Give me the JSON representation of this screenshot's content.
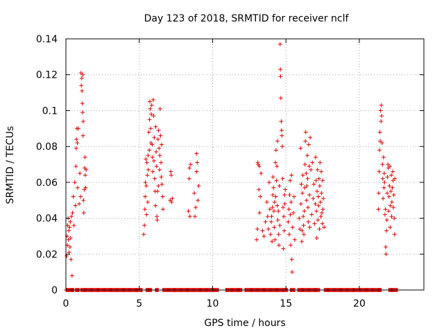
{
  "chart_data": {
    "type": "scatter",
    "title": "Day 123 of 2018, SRMTID for receiver nclf",
    "xlabel": "GPS time / hours",
    "ylabel": "SRMTID / TECUs",
    "xlim": [
      0,
      24.4
    ],
    "ylim": [
      0,
      0.14
    ],
    "grid": true,
    "x_ticks": [
      0,
      5,
      10,
      15,
      20
    ],
    "x_tick_labels": [
      "0",
      "5",
      "10",
      "15",
      "20"
    ],
    "y_ticks": [
      0,
      0.02,
      0.04,
      0.06,
      0.08,
      0.1,
      0.12,
      0.14
    ],
    "y_tick_labels": [
      "0",
      "0.02",
      "0.04",
      "0.06",
      "0.08",
      "0.1",
      "0.12",
      "0.14"
    ],
    "marker_color": "#e00000",
    "series": [
      {
        "name": "SRMTID",
        "points": [
          [
            0.05,
            0.019
          ],
          [
            0.08,
            0.03
          ],
          [
            0.1,
            0.025
          ],
          [
            0.12,
            0.036
          ],
          [
            0.15,
            0.04
          ],
          [
            0.18,
            0.028
          ],
          [
            0.2,
            0.033
          ],
          [
            0.22,
            0.021
          ],
          [
            0.25,
            0.035
          ],
          [
            0.28,
            0.024
          ],
          [
            0.3,
            0.038
          ],
          [
            0.32,
            0.029
          ],
          [
            0.35,
            0.017
          ],
          [
            0.38,
            0.041
          ],
          [
            0.42,
            0.008
          ],
          [
            0.45,
            0.043
          ],
          [
            0.5,
            0.052
          ],
          [
            0.55,
            0.036
          ],
          [
            0.6,
            0.06
          ],
          [
            0.65,
            0.047
          ],
          [
            0.68,
            0.069
          ],
          [
            0.7,
            0.079
          ],
          [
            0.72,
            0.084
          ],
          [
            0.75,
            0.09
          ],
          [
            0.78,
            0.082
          ],
          [
            0.8,
            0.057
          ],
          [
            0.85,
            0.09
          ],
          [
            0.9,
            0.048
          ],
          [
            0.95,
            0.065
          ],
          [
            1.0,
            0.052
          ],
          [
            1.03,
            0.121
          ],
          [
            1.05,
            0.114
          ],
          [
            1.08,
            0.118
          ],
          [
            1.1,
            0.111
          ],
          [
            1.12,
            0.104
          ],
          [
            1.14,
            0.099
          ],
          [
            1.15,
            0.12
          ],
          [
            1.17,
            0.086
          ],
          [
            1.18,
            0.094
          ],
          [
            1.2,
            0.05
          ],
          [
            1.22,
            0.043
          ],
          [
            1.25,
            0.056
          ],
          [
            1.28,
            0.068
          ],
          [
            1.3,
            0.074
          ],
          [
            1.32,
            0.064
          ],
          [
            1.35,
            0.057
          ],
          [
            1.38,
            0.067
          ],
          [
            5.3,
            0.031
          ],
          [
            5.35,
            0.036
          ],
          [
            5.38,
            0.045
          ],
          [
            5.4,
            0.052
          ],
          [
            5.42,
            0.06
          ],
          [
            5.45,
            0.073
          ],
          [
            5.48,
            0.058
          ],
          [
            5.5,
            0.042
          ],
          [
            5.52,
            0.071
          ],
          [
            5.55,
            0.064
          ],
          [
            5.58,
            0.049
          ],
          [
            5.6,
            0.075
          ],
          [
            5.62,
            0.067
          ],
          [
            5.65,
            0.088
          ],
          [
            5.68,
            0.078
          ],
          [
            5.7,
            0.095
          ],
          [
            5.72,
            0.105
          ],
          [
            5.75,
            0.101
          ],
          [
            5.78,
            0.09
          ],
          [
            5.8,
            0.082
          ],
          [
            5.82,
            0.098
          ],
          [
            5.85,
            0.103
          ],
          [
            5.88,
            0.081
          ],
          [
            5.9,
            0.074
          ],
          [
            5.92,
            0.066
          ],
          [
            5.95,
            0.106
          ],
          [
            5.98,
            0.097
          ],
          [
            6.0,
            0.072
          ],
          [
            6.02,
            0.085
          ],
          [
            6.05,
            0.062
          ],
          [
            6.08,
            0.055
          ],
          [
            6.1,
            0.047
          ],
          [
            6.12,
            0.091
          ],
          [
            6.15,
            0.077
          ],
          [
            6.18,
            0.069
          ],
          [
            6.2,
            0.041
          ],
          [
            6.22,
            0.039
          ],
          [
            6.25,
            0.055
          ],
          [
            6.28,
            0.084
          ],
          [
            6.3,
            0.058
          ],
          [
            6.32,
            0.089
          ],
          [
            6.35,
            0.079
          ],
          [
            6.38,
            0.067
          ],
          [
            6.4,
            0.075
          ],
          [
            6.42,
            0.101
          ],
          [
            6.45,
            0.086
          ],
          [
            6.48,
            0.071
          ],
          [
            6.5,
            0.063
          ],
          [
            6.52,
            0.081
          ],
          [
            6.55,
            0.059
          ],
          [
            6.6,
            0.052
          ],
          [
            6.62,
            0.045
          ],
          [
            7.1,
            0.05
          ],
          [
            7.15,
            0.066
          ],
          [
            7.18,
            0.064
          ],
          [
            7.2,
            0.049
          ],
          [
            7.25,
            0.051
          ],
          [
            8.35,
            0.044
          ],
          [
            8.4,
            0.062
          ],
          [
            8.42,
            0.068
          ],
          [
            8.45,
            0.041
          ],
          [
            8.5,
            0.07
          ],
          [
            8.75,
            0.054
          ],
          [
            8.8,
            0.041
          ],
          [
            8.85,
            0.046
          ],
          [
            8.9,
            0.076
          ],
          [
            8.92,
            0.066
          ],
          [
            8.95,
            0.071
          ],
          [
            9.0,
            0.05
          ],
          [
            9.05,
            0.058
          ],
          [
            13.0,
            0.028
          ],
          [
            13.05,
            0.034
          ],
          [
            13.08,
            0.071
          ],
          [
            13.1,
            0.07
          ],
          [
            13.15,
            0.056
          ],
          [
            13.18,
            0.069
          ],
          [
            13.2,
            0.043
          ],
          [
            13.25,
            0.052
          ],
          [
            13.3,
            0.065
          ],
          [
            13.4,
            0.033
          ],
          [
            13.5,
            0.03
          ],
          [
            13.6,
            0.038
          ],
          [
            13.7,
            0.049
          ],
          [
            13.75,
            0.041
          ],
          [
            13.8,
            0.034
          ],
          [
            13.85,
            0.06
          ],
          [
            13.9,
            0.045
          ],
          [
            13.95,
            0.031
          ],
          [
            14.0,
            0.038
          ],
          [
            14.02,
            0.041
          ],
          [
            14.05,
            0.027
          ],
          [
            14.08,
            0.046
          ],
          [
            14.1,
            0.053
          ],
          [
            14.12,
            0.063
          ],
          [
            14.15,
            0.057
          ],
          [
            14.18,
            0.044
          ],
          [
            14.2,
            0.035
          ],
          [
            14.22,
            0.049
          ],
          [
            14.25,
            0.028
          ],
          [
            14.28,
            0.071
          ],
          [
            14.3,
            0.052
          ],
          [
            14.32,
            0.078
          ],
          [
            14.35,
            0.061
          ],
          [
            14.38,
            0.069
          ],
          [
            14.4,
            0.047
          ],
          [
            14.42,
            0.083
          ],
          [
            14.45,
            0.039
          ],
          [
            14.48,
            0.044
          ],
          [
            14.5,
            0.031
          ],
          [
            14.52,
            0.025
          ],
          [
            14.55,
            0.058
          ],
          [
            14.58,
            0.036
          ],
          [
            14.6,
            0.137
          ],
          [
            14.62,
            0.123
          ],
          [
            14.63,
            0.119
          ],
          [
            14.65,
            0.107
          ],
          [
            14.68,
            0.094
          ],
          [
            14.7,
            0.089
          ],
          [
            14.72,
            0.086
          ],
          [
            14.75,
            0.08
          ],
          [
            14.78,
            0.062
          ],
          [
            14.8,
            0.046
          ],
          [
            14.82,
            0.023
          ],
          [
            14.85,
            0.041
          ],
          [
            14.88,
            0.033
          ],
          [
            14.9,
            0.053
          ],
          [
            14.92,
            0.048
          ],
          [
            14.95,
            0.056
          ],
          [
            15.15,
            0.038
          ],
          [
            15.2,
            0.045
          ],
          [
            15.22,
            0.031
          ],
          [
            15.25,
            0.053
          ],
          [
            15.28,
            0.061
          ],
          [
            15.3,
            0.042
          ],
          [
            15.32,
            0.025
          ],
          [
            15.35,
            0.049
          ],
          [
            15.38,
            0.064
          ],
          [
            15.4,
            0.017
          ],
          [
            15.42,
            0.01
          ],
          [
            15.45,
            0.035
          ],
          [
            15.5,
            0.043
          ],
          [
            15.55,
            0.052
          ],
          [
            15.6,
            0.028
          ],
          [
            15.9,
            0.04
          ],
          [
            15.95,
            0.034
          ],
          [
            16.0,
            0.079
          ],
          [
            16.02,
            0.048
          ],
          [
            16.05,
            0.059
          ],
          [
            16.08,
            0.027
          ],
          [
            16.1,
            0.033
          ],
          [
            16.12,
            0.054
          ],
          [
            16.15,
            0.064
          ],
          [
            16.18,
            0.041
          ],
          [
            16.2,
            0.036
          ],
          [
            16.22,
            0.031
          ],
          [
            16.25,
            0.044
          ],
          [
            16.28,
            0.057
          ],
          [
            16.3,
            0.07
          ],
          [
            16.32,
            0.083
          ],
          [
            16.35,
            0.088
          ],
          [
            16.38,
            0.065
          ],
          [
            16.4,
            0.05
          ],
          [
            16.42,
            0.058
          ],
          [
            16.45,
            0.075
          ],
          [
            16.48,
            0.062
          ],
          [
            16.5,
            0.046
          ],
          [
            16.52,
            0.038
          ],
          [
            16.55,
            0.081
          ],
          [
            16.58,
            0.069
          ],
          [
            16.6,
            0.053
          ],
          [
            16.62,
            0.035
          ],
          [
            16.65,
            0.085
          ],
          [
            16.7,
            0.067
          ],
          [
            16.75,
            0.042
          ],
          [
            16.8,
            0.071
          ],
          [
            16.85,
            0.051
          ],
          [
            16.9,
            0.059
          ],
          [
            16.95,
            0.037
          ],
          [
            17.0,
            0.048
          ],
          [
            17.02,
            0.074
          ],
          [
            17.05,
            0.061
          ],
          [
            17.08,
            0.044
          ],
          [
            17.1,
            0.029
          ],
          [
            17.12,
            0.055
          ],
          [
            17.15,
            0.067
          ],
          [
            17.18,
            0.039
          ],
          [
            17.2,
            0.052
          ],
          [
            17.22,
            0.047
          ],
          [
            17.25,
            0.062
          ],
          [
            17.28,
            0.034
          ],
          [
            17.3,
            0.058
          ],
          [
            17.32,
            0.071
          ],
          [
            17.35,
            0.049
          ],
          [
            17.38,
            0.041
          ],
          [
            17.4,
            0.066
          ],
          [
            17.42,
            0.054
          ],
          [
            17.45,
            0.043
          ],
          [
            17.48,
            0.037
          ],
          [
            17.5,
            0.061
          ],
          [
            17.52,
            0.045
          ],
          [
            17.55,
            0.051
          ],
          [
            17.6,
            0.035
          ],
          [
            21.3,
            0.045
          ],
          [
            21.32,
            0.054
          ],
          [
            21.35,
            0.066
          ],
          [
            21.38,
            0.078
          ],
          [
            21.4,
            0.088
          ],
          [
            21.42,
            0.083
          ],
          [
            21.45,
            0.1
          ],
          [
            21.48,
            0.094
          ],
          [
            21.5,
            0.103
          ],
          [
            21.52,
            0.097
          ],
          [
            21.55,
            0.082
          ],
          [
            21.58,
            0.07
          ],
          [
            21.6,
            0.062
          ],
          [
            21.62,
            0.051
          ],
          [
            21.65,
            0.074
          ],
          [
            21.68,
            0.057
          ],
          [
            21.7,
            0.065
          ],
          [
            21.72,
            0.06
          ],
          [
            21.75,
            0.042
          ],
          [
            21.78,
            0.045
          ],
          [
            21.8,
            0.024
          ],
          [
            21.82,
            0.02
          ],
          [
            21.85,
            0.033
          ],
          [
            21.88,
            0.039
          ],
          [
            21.9,
            0.054
          ],
          [
            21.92,
            0.063
          ],
          [
            21.95,
            0.07
          ],
          [
            21.98,
            0.068
          ],
          [
            22.0,
            0.044
          ],
          [
            22.02,
            0.052
          ],
          [
            22.05,
            0.058
          ],
          [
            22.08,
            0.069
          ],
          [
            22.1,
            0.035
          ],
          [
            22.12,
            0.047
          ],
          [
            22.15,
            0.055
          ],
          [
            22.18,
            0.064
          ],
          [
            22.2,
            0.041
          ],
          [
            22.22,
            0.049
          ],
          [
            22.25,
            0.057
          ],
          [
            22.28,
            0.066
          ],
          [
            22.3,
            0.061
          ],
          [
            22.32,
            0.046
          ],
          [
            22.35,
            0.053
          ],
          [
            22.38,
            0.04
          ],
          [
            22.4,
            0.031
          ],
          [
            22.42,
            0.062
          ]
        ],
        "zero_ranges": [
          [
            0.0,
            0.55
          ],
          [
            0.65,
            0.9
          ],
          [
            1.0,
            5.2
          ],
          [
            5.45,
            5.85
          ],
          [
            6.1,
            6.3
          ],
          [
            6.6,
            10.4
          ],
          [
            10.9,
            12.0
          ],
          [
            12.2,
            15.1
          ],
          [
            15.3,
            15.6
          ],
          [
            15.8,
            17.3
          ],
          [
            17.6,
            21.5
          ],
          [
            22.0,
            22.6
          ]
        ]
      }
    ]
  }
}
